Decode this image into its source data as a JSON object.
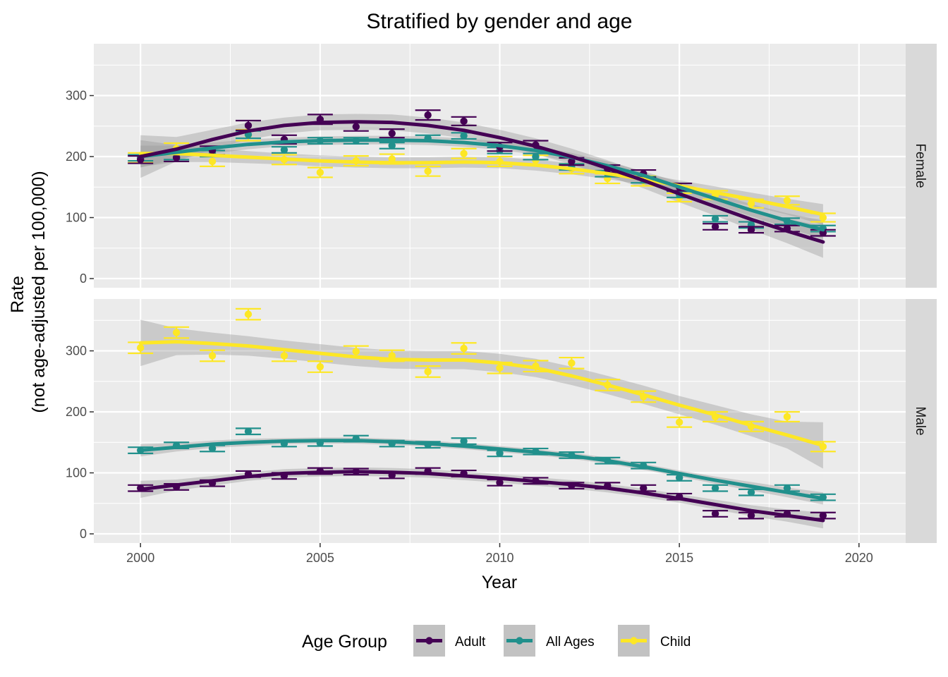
{
  "chart_data": {
    "type": "line",
    "title": "Stratified by gender and age",
    "xlabel": "Year",
    "ylabel": [
      "Rate",
      "(not age-adjusted per 100,000)"
    ],
    "xlim": [
      1998.7,
      2021.3
    ],
    "ylim": [
      -15,
      385
    ],
    "x_ticks": [
      2000,
      2005,
      2010,
      2015,
      2020
    ],
    "y_ticks": [
      0,
      100,
      200,
      300
    ],
    "grid": true,
    "legend": {
      "title": "Age Group",
      "placement": "bottom",
      "entries": [
        "Adult",
        "All Ages",
        "Child"
      ]
    },
    "colors": {
      "Adult": "#440154",
      "All Ages": "#21908c",
      "Child": "#fde725"
    },
    "panels": [
      {
        "facet": "Female",
        "series": [
          {
            "name": "Adult",
            "x": [
              2000,
              2001,
              2002,
              2003,
              2004,
              2005,
              2006,
              2007,
              2008,
              2009,
              2010,
              2011,
              2012,
              2013,
              2014,
              2015,
              2016,
              2017,
              2018,
              2019
            ],
            "y": [
              195,
              198,
              210,
              251,
              228,
              261,
              249,
              238,
              268,
              258,
              216,
              219,
              192,
              180,
              172,
              150,
              85,
              80,
              82,
              75
            ],
            "err": [
              6,
              6,
              7,
              8,
              7,
              8,
              7,
              7,
              8,
              7,
              7,
              7,
              6,
              6,
              6,
              6,
              5,
              5,
              5,
              5
            ],
            "smooth": [
              200,
              212,
              228,
              242,
              251,
              256,
              257,
              256,
              251,
              243,
              231,
              217,
              200,
              181,
              161,
              139,
              118,
              97,
              78,
              60
            ],
            "band": [
              35,
              20,
              16,
              14,
              13,
              13,
              13,
              13,
              13,
              13,
              13,
              13,
              13,
              13,
              13,
              14,
              15,
              17,
              20,
              26
            ]
          },
          {
            "name": "All Ages",
            "x": [
              2000,
              2001,
              2002,
              2003,
              2004,
              2005,
              2006,
              2007,
              2008,
              2009,
              2010,
              2011,
              2012,
              2013,
              2014,
              2015,
              2016,
              2017,
              2018,
              2019
            ],
            "y": [
              198,
              200,
              205,
              236,
              211,
              226,
              226,
              218,
              230,
              234,
              210,
              200,
              183,
              172,
              162,
              138,
              98,
              88,
              94,
              82
            ],
            "err": [
              5,
              5,
              5,
              6,
              5,
              5,
              5,
              5,
              5,
              5,
              5,
              5,
              5,
              5,
              5,
              5,
              5,
              5,
              5,
              5
            ],
            "smooth": [
              200,
              207,
              214,
              220,
              224,
              226,
              227,
              227,
              226,
              223,
              218,
              210,
              199,
              185,
              169,
              150,
              131,
              112,
              95,
              80
            ],
            "band": [
              18,
              11,
              9,
              8,
              7,
              7,
              7,
              7,
              7,
              7,
              7,
              7,
              7,
              7,
              7,
              8,
              9,
              10,
              12,
              15
            ]
          },
          {
            "name": "Child",
            "x": [
              2000,
              2001,
              2002,
              2003,
              2004,
              2005,
              2006,
              2007,
              2008,
              2009,
              2010,
              2011,
              2012,
              2013,
              2014,
              2015,
              2016,
              2017,
              2018,
              2019
            ],
            "y": [
              198,
              213,
              192,
              235,
              195,
              174,
              193,
              196,
              176,
              205,
              192,
              194,
              180,
              164,
              160,
              133,
              137,
              123,
              128,
              100
            ],
            "err": [
              8,
              9,
              8,
              9,
              8,
              8,
              8,
              8,
              8,
              8,
              8,
              8,
              8,
              8,
              8,
              7,
              7,
              7,
              7,
              7
            ],
            "smooth": [
              205,
              205,
              202,
              199,
              196,
              193,
              191,
              190,
              190,
              191,
              190,
              186,
              180,
              172,
              163,
              152,
              141,
              130,
              118,
              105
            ],
            "band": [
              22,
              14,
              11,
              10,
              9,
              9,
              9,
              9,
              9,
              9,
              9,
              9,
              9,
              9,
              9,
              9,
              10,
              11,
              13,
              17
            ]
          }
        ]
      },
      {
        "facet": "Male",
        "series": [
          {
            "name": "Adult",
            "x": [
              2000,
              2001,
              2002,
              2003,
              2004,
              2005,
              2006,
              2007,
              2008,
              2009,
              2010,
              2011,
              2012,
              2013,
              2014,
              2015,
              2016,
              2017,
              2018,
              2019
            ],
            "y": [
              75,
              77,
              83,
              98,
              95,
              103,
              102,
              96,
              103,
              99,
              84,
              87,
              79,
              79,
              75,
              61,
              33,
              30,
              33,
              30
            ],
            "err": [
              5,
              5,
              5,
              5,
              5,
              5,
              5,
              5,
              5,
              5,
              5,
              5,
              5,
              5,
              5,
              5,
              5,
              5,
              5,
              5
            ],
            "smooth": [
              73,
              80,
              87,
              94,
              99,
              101,
              102,
              101,
              99,
              95,
              91,
              86,
              81,
              75,
              67,
              58,
              48,
              38,
              30,
              22
            ],
            "band": [
              14,
              9,
              8,
              7,
              7,
              7,
              7,
              7,
              7,
              7,
              7,
              7,
              7,
              7,
              7,
              7,
              8,
              9,
              10,
              13
            ]
          },
          {
            "name": "All Ages",
            "x": [
              2000,
              2001,
              2002,
              2003,
              2004,
              2005,
              2006,
              2007,
              2008,
              2009,
              2010,
              2011,
              2012,
              2013,
              2014,
              2015,
              2016,
              2017,
              2018,
              2019
            ],
            "y": [
              137,
              145,
              140,
              168,
              148,
              149,
              156,
              148,
              146,
              152,
              132,
              135,
              129,
              120,
              112,
              92,
              75,
              68,
              75,
              60
            ],
            "err": [
              5,
              5,
              5,
              5,
              5,
              5,
              5,
              5,
              5,
              5,
              5,
              5,
              5,
              5,
              5,
              5,
              5,
              5,
              5,
              5
            ],
            "smooth": [
              137,
              142,
              147,
              150,
              152,
              153,
              153,
              151,
              148,
              144,
              139,
              134,
              128,
              120,
              110,
              99,
              88,
              78,
              68,
              58
            ],
            "band": [
              10,
              7,
              6,
              6,
              5,
              5,
              5,
              5,
              5,
              5,
              5,
              5,
              5,
              5,
              5,
              5,
              6,
              7,
              8,
              10
            ]
          },
          {
            "name": "Child",
            "x": [
              2000,
              2001,
              2002,
              2003,
              2004,
              2005,
              2006,
              2007,
              2008,
              2009,
              2010,
              2011,
              2012,
              2013,
              2014,
              2015,
              2016,
              2017,
              2018,
              2019
            ],
            "y": [
              305,
              330,
              292,
              360,
              292,
              274,
              299,
              292,
              266,
              304,
              272,
              275,
              280,
              244,
              225,
              183,
              192,
              176,
              192,
              143
            ],
            "err": [
              9,
              9,
              9,
              9,
              9,
              9,
              9,
              9,
              9,
              9,
              9,
              9,
              9,
              9,
              9,
              8,
              8,
              8,
              8,
              8
            ],
            "smooth": [
              313,
              315,
              312,
              308,
              302,
              296,
              290,
              286,
              285,
              285,
              280,
              272,
              259,
              244,
              228,
              211,
              195,
              178,
              162,
              145
            ],
            "band": [
              38,
              22,
              18,
              16,
              15,
              15,
              15,
              15,
              15,
              15,
              15,
              15,
              15,
              15,
              15,
              15,
              16,
              18,
              22,
              38
            ]
          }
        ]
      }
    ]
  }
}
